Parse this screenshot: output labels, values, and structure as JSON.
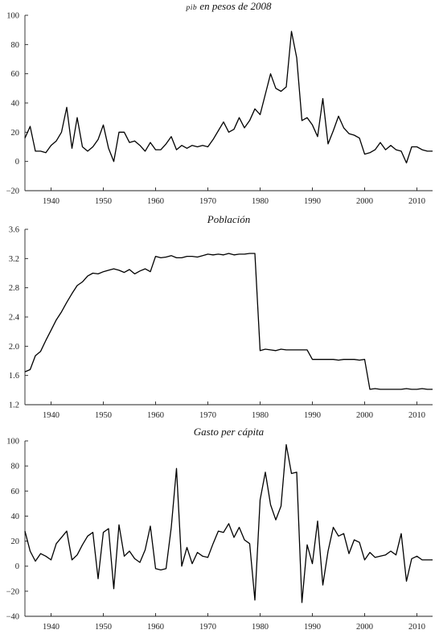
{
  "chart_data": [
    {
      "type": "line",
      "title_prefix": "PIB",
      "title": "en pesos de 2008",
      "xlim": [
        1935,
        2013
      ],
      "ylim": [
        -20,
        100
      ],
      "yticks": [
        -20,
        0,
        20,
        40,
        60,
        80,
        100
      ],
      "xticks": [
        1940,
        1950,
        1960,
        1970,
        1980,
        1990,
        2000,
        2010
      ],
      "x": [
        1935,
        1936,
        1937,
        1938,
        1939,
        1940,
        1941,
        1942,
        1943,
        1944,
        1945,
        1946,
        1947,
        1948,
        1949,
        1950,
        1951,
        1952,
        1953,
        1954,
        1955,
        1956,
        1957,
        1958,
        1959,
        1960,
        1961,
        1962,
        1963,
        1964,
        1965,
        1966,
        1967,
        1968,
        1969,
        1970,
        1971,
        1972,
        1973,
        1974,
        1975,
        1976,
        1977,
        1978,
        1979,
        1980,
        1981,
        1982,
        1983,
        1984,
        1985,
        1986,
        1987,
        1988,
        1989,
        1990,
        1991,
        1992,
        1993,
        1994,
        1995,
        1996,
        1997,
        1998,
        1999,
        2000,
        2001,
        2002,
        2003,
        2004,
        2005,
        2006,
        2007,
        2008,
        2009,
        2010,
        2011,
        2012,
        2013
      ],
      "series": [
        {
          "values": [
            16,
            24,
            7,
            7,
            6,
            11,
            14,
            20,
            37,
            9,
            30,
            10,
            7,
            10,
            15,
            25,
            9,
            0,
            20,
            20,
            13,
            14,
            11,
            7,
            13,
            8,
            8,
            12,
            17,
            8,
            11,
            9,
            11,
            10,
            11,
            10,
            15,
            21,
            27,
            20,
            22,
            30,
            23,
            28,
            36,
            32,
            46,
            60,
            50,
            48,
            51,
            89,
            71,
            28,
            30,
            25,
            17,
            43,
            12,
            21,
            31,
            23,
            19,
            18,
            16,
            5,
            6,
            8,
            13,
            8,
            11,
            8,
            7,
            -1,
            10,
            10,
            8,
            7,
            7
          ]
        }
      ]
    },
    {
      "type": "line",
      "title": "Población",
      "xlim": [
        1935,
        2013
      ],
      "ylim": [
        1.2,
        3.6
      ],
      "yticks": [
        1.2,
        1.6,
        2.0,
        2.4,
        2.8,
        3.2,
        3.6
      ],
      "ytick_labels": [
        "1.2",
        "1.6",
        "2.0",
        "2.4",
        "2.8",
        "3.2",
        "3.6"
      ],
      "xticks": [
        1940,
        1950,
        1960,
        1970,
        1980,
        1990,
        2000,
        2010
      ],
      "x": [
        1935,
        1936,
        1937,
        1938,
        1939,
        1940,
        1941,
        1942,
        1943,
        1944,
        1945,
        1946,
        1947,
        1948,
        1949,
        1950,
        1951,
        1952,
        1953,
        1954,
        1955,
        1956,
        1957,
        1958,
        1959,
        1960,
        1961,
        1962,
        1963,
        1964,
        1965,
        1966,
        1967,
        1968,
        1969,
        1970,
        1971,
        1972,
        1973,
        1974,
        1975,
        1976,
        1977,
        1978,
        1979,
        1980,
        1981,
        1982,
        1983,
        1984,
        1985,
        1986,
        1987,
        1988,
        1989,
        1990,
        1991,
        1992,
        1993,
        1994,
        1995,
        1996,
        1997,
        1998,
        1999,
        2000,
        2001,
        2002,
        2003,
        2004,
        2005,
        2006,
        2007,
        2008,
        2009,
        2010,
        2011,
        2012,
        2013
      ],
      "series": [
        {
          "values": [
            1.65,
            1.68,
            1.87,
            1.93,
            2.08,
            2.22,
            2.36,
            2.47,
            2.6,
            2.72,
            2.83,
            2.88,
            2.96,
            3.0,
            2.99,
            3.02,
            3.04,
            3.06,
            3.04,
            3.01,
            3.05,
            2.99,
            3.03,
            3.06,
            3.02,
            3.23,
            3.21,
            3.22,
            3.24,
            3.21,
            3.21,
            3.23,
            3.23,
            3.22,
            3.24,
            3.26,
            3.25,
            3.26,
            3.25,
            3.27,
            3.25,
            3.26,
            3.26,
            3.27,
            3.27,
            1.94,
            1.96,
            1.95,
            1.94,
            1.96,
            1.95,
            1.95,
            1.95,
            1.95,
            1.95,
            1.82,
            1.82,
            1.82,
            1.82,
            1.82,
            1.81,
            1.82,
            1.82,
            1.82,
            1.81,
            1.82,
            1.41,
            1.42,
            1.41,
            1.41,
            1.41,
            1.41,
            1.41,
            1.42,
            1.41,
            1.41,
            1.42,
            1.41,
            1.41
          ]
        }
      ]
    },
    {
      "type": "line",
      "title": "Gasto per cápita",
      "xlim": [
        1935,
        2013
      ],
      "ylim": [
        -40,
        100
      ],
      "yticks": [
        -40,
        -20,
        0,
        20,
        40,
        60,
        80,
        100
      ],
      "xticks": [
        1940,
        1950,
        1960,
        1970,
        1980,
        1990,
        2000,
        2010
      ],
      "x": [
        1935,
        1936,
        1937,
        1938,
        1939,
        1940,
        1941,
        1942,
        1943,
        1944,
        1945,
        1946,
        1947,
        1948,
        1949,
        1950,
        1951,
        1952,
        1953,
        1954,
        1955,
        1956,
        1957,
        1958,
        1959,
        1960,
        1961,
        1962,
        1963,
        1964,
        1965,
        1966,
        1967,
        1968,
        1969,
        1970,
        1971,
        1972,
        1973,
        1974,
        1975,
        1976,
        1977,
        1978,
        1979,
        1980,
        1981,
        1982,
        1983,
        1984,
        1985,
        1986,
        1987,
        1988,
        1989,
        1990,
        1991,
        1992,
        1993,
        1994,
        1995,
        1996,
        1997,
        1998,
        1999,
        2000,
        2001,
        2002,
        2003,
        2004,
        2005,
        2006,
        2007,
        2008,
        2009,
        2010,
        2011,
        2012,
        2013
      ],
      "series": [
        {
          "values": [
            28,
            12,
            4,
            10,
            8,
            5,
            18,
            23,
            28,
            5,
            9,
            17,
            24,
            27,
            -10,
            27,
            30,
            -18,
            33,
            8,
            12,
            6,
            3,
            13,
            32,
            -2,
            -3,
            -2,
            31,
            78,
            0,
            15,
            2,
            11,
            8,
            7,
            18,
            28,
            27,
            34,
            23,
            31,
            21,
            18,
            -27,
            53,
            75,
            49,
            37,
            48,
            97,
            74,
            75,
            -29,
            17,
            2,
            36,
            -15,
            12,
            31,
            24,
            26,
            10,
            21,
            19,
            5,
            11,
            7,
            8,
            9,
            12,
            9,
            26,
            -12,
            6,
            8,
            5,
            5,
            5
          ]
        }
      ]
    }
  ]
}
